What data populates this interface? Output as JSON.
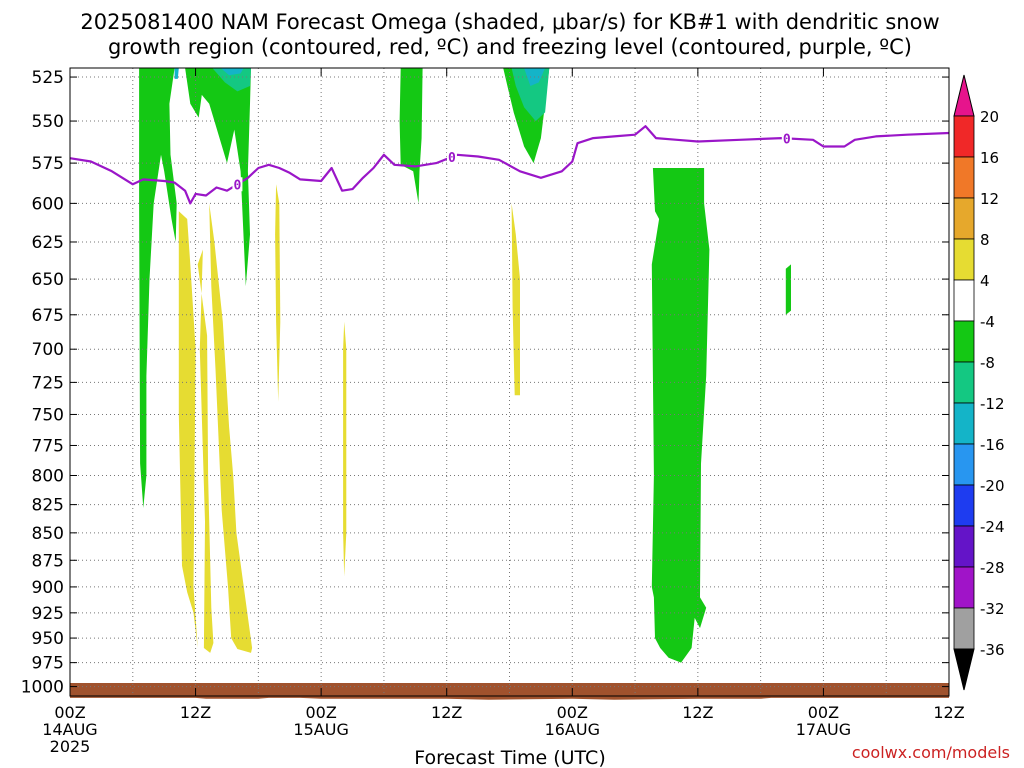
{
  "chart_data": {
    "type": "heatmap",
    "title_line1": "2025081400 NAM Forecast Omega (shaded, μbar/s) for KB#1 with dendritic snow",
    "title_line2": "growth region (contoured, red, ºC) and freezing level (contoured, purple, ºC)",
    "xlabel": "Forecast Time (UTC)",
    "x_range_hours": [
      0,
      84
    ],
    "y_ticks_hpa": [
      525,
      550,
      575,
      600,
      625,
      650,
      675,
      700,
      725,
      750,
      775,
      800,
      825,
      850,
      875,
      900,
      925,
      950,
      975,
      1000
    ],
    "ylim_hpa": [
      520,
      1010
    ],
    "y_scale": "log-pressure (inverted)",
    "grid": "dotted",
    "x_ticks": [
      {
        "h": 0,
        "l1": "00Z",
        "l2": "14AUG",
        "l3": "2025"
      },
      {
        "h": 12,
        "l1": "12Z",
        "l2": "",
        "l3": ""
      },
      {
        "h": 24,
        "l1": "00Z",
        "l2": "15AUG",
        "l3": ""
      },
      {
        "h": 36,
        "l1": "12Z",
        "l2": "",
        "l3": ""
      },
      {
        "h": 48,
        "l1": "00Z",
        "l2": "16AUG",
        "l3": ""
      },
      {
        "h": 60,
        "l1": "12Z",
        "l2": "",
        "l3": ""
      },
      {
        "h": 72,
        "l1": "00Z",
        "l2": "17AUG",
        "l3": ""
      },
      {
        "h": 84,
        "l1": "12Z",
        "l2": "",
        "l3": ""
      }
    ],
    "colorbar": {
      "labels": [
        "20",
        "16",
        "12",
        "8",
        "4",
        "-4",
        "-8",
        "-12",
        "-16",
        "-20",
        "-24",
        "-28",
        "-32",
        "-36"
      ],
      "colors": [
        "#f02828",
        "#f07828",
        "#e6a82c",
        "#e6dc32",
        "#ffffff",
        "#14c814",
        "#14c882",
        "#14b4c8",
        "#2896f0",
        "#1e3cf0",
        "#6414c8",
        "#a014c8",
        "#a0a0a0"
      ],
      "top_arrow_color": "#e6148c",
      "bottom_arrow_color": "#000000"
    },
    "freezing_level_label": "0",
    "freezing_level_color": "#9a16c8",
    "freezing_level": [
      {
        "h": 0,
        "p": 572
      },
      {
        "h": 2,
        "p": 574
      },
      {
        "h": 4,
        "p": 580
      },
      {
        "h": 6,
        "p": 588
      },
      {
        "h": 7,
        "p": 585
      },
      {
        "h": 9,
        "p": 586
      },
      {
        "h": 10,
        "p": 587
      },
      {
        "h": 11,
        "p": 592
      },
      {
        "h": 11.5,
        "p": 600
      },
      {
        "h": 12,
        "p": 594
      },
      {
        "h": 13,
        "p": 595
      },
      {
        "h": 14,
        "p": 590
      },
      {
        "h": 15,
        "p": 592
      },
      {
        "h": 16,
        "p": 588
      },
      {
        "h": 17,
        "p": 584
      },
      {
        "h": 18,
        "p": 578
      },
      {
        "h": 19,
        "p": 576
      },
      {
        "h": 20,
        "p": 578
      },
      {
        "h": 21,
        "p": 581
      },
      {
        "h": 22,
        "p": 585
      },
      {
        "h": 24,
        "p": 586
      },
      {
        "h": 25,
        "p": 578
      },
      {
        "h": 26,
        "p": 592
      },
      {
        "h": 27,
        "p": 591
      },
      {
        "h": 28,
        "p": 584
      },
      {
        "h": 29,
        "p": 578
      },
      {
        "h": 30,
        "p": 570
      },
      {
        "h": 31,
        "p": 576
      },
      {
        "h": 33,
        "p": 577
      },
      {
        "h": 35,
        "p": 575
      },
      {
        "h": 37,
        "p": 570
      },
      {
        "h": 39,
        "p": 571
      },
      {
        "h": 41,
        "p": 573
      },
      {
        "h": 43,
        "p": 580
      },
      {
        "h": 45,
        "p": 584
      },
      {
        "h": 47,
        "p": 580
      },
      {
        "h": 48,
        "p": 574
      },
      {
        "h": 48.5,
        "p": 563
      },
      {
        "h": 50,
        "p": 560
      },
      {
        "h": 52,
        "p": 559
      },
      {
        "h": 54,
        "p": 558
      },
      {
        "h": 55,
        "p": 553
      },
      {
        "h": 56,
        "p": 560
      },
      {
        "h": 58,
        "p": 561
      },
      {
        "h": 60,
        "p": 562
      },
      {
        "h": 64,
        "p": 561
      },
      {
        "h": 68,
        "p": 560
      },
      {
        "h": 71,
        "p": 561
      },
      {
        "h": 72,
        "p": 565
      },
      {
        "h": 74,
        "p": 565
      },
      {
        "h": 75,
        "p": 561
      },
      {
        "h": 77,
        "p": 559
      },
      {
        "h": 80,
        "p": 558
      },
      {
        "h": 84,
        "p": 557
      }
    ],
    "freezing_level_label_hours": [
      16,
      36.5,
      68.5
    ],
    "omega_regions": [
      {
        "color": "#e6dc32",
        "label": "4 to 8",
        "pts": [
          [
            10.4,
            605
          ],
          [
            11.2,
            610
          ],
          [
            11.5,
            640
          ],
          [
            12.0,
            700
          ],
          [
            11.8,
            900
          ],
          [
            12.2,
            960
          ],
          [
            11.8,
            925
          ],
          [
            11.2,
            905
          ],
          [
            10.7,
            880
          ],
          [
            10.4,
            750
          ],
          [
            10.4,
            605
          ]
        ]
      },
      {
        "color": "#e6dc32",
        "label": "4 to 8",
        "pts": [
          [
            12.2,
            640
          ],
          [
            12.7,
            630
          ],
          [
            12.4,
            700
          ],
          [
            12.9,
            840
          ],
          [
            12.8,
            960
          ],
          [
            13.4,
            965
          ],
          [
            13.7,
            955
          ],
          [
            13.5,
            920
          ],
          [
            13.2,
            800
          ],
          [
            13.1,
            690
          ],
          [
            12.2,
            640
          ]
        ]
      },
      {
        "color": "#e6dc32",
        "label": "4 to 8",
        "pts": [
          [
            13.3,
            600
          ],
          [
            13.8,
            625
          ],
          [
            14.6,
            680
          ],
          [
            15.2,
            760
          ],
          [
            15.6,
            800
          ],
          [
            15.9,
            850
          ],
          [
            17.4,
            960
          ],
          [
            17.3,
            965
          ],
          [
            16.0,
            961
          ],
          [
            15.4,
            950
          ],
          [
            15.1,
            900
          ],
          [
            14.5,
            830
          ],
          [
            13.9,
            715
          ],
          [
            13.5,
            655
          ],
          [
            13.3,
            600
          ]
        ]
      },
      {
        "color": "#e6dc32",
        "label": "4 to 8",
        "pts": [
          [
            19.7,
            588
          ],
          [
            20.0,
            600
          ],
          [
            20.1,
            680
          ],
          [
            19.9,
            740
          ],
          [
            19.7,
            680
          ],
          [
            19.6,
            620
          ],
          [
            19.7,
            588
          ]
        ]
      },
      {
        "color": "#e6dc32",
        "label": "4 to 8",
        "pts": [
          [
            26.2,
            680
          ],
          [
            26.4,
            700
          ],
          [
            26.4,
            850
          ],
          [
            26.2,
            890
          ],
          [
            26.1,
            850
          ],
          [
            26.1,
            700
          ],
          [
            26.2,
            680
          ]
        ]
      },
      {
        "color": "#e6dc32",
        "label": "4 to 8",
        "pts": [
          [
            42.2,
            600
          ],
          [
            42.6,
            620
          ],
          [
            43.0,
            650
          ],
          [
            43.0,
            735
          ],
          [
            42.5,
            735
          ],
          [
            42.3,
            670
          ],
          [
            42.2,
            600
          ]
        ]
      },
      {
        "color": "#14c814",
        "label": "-8 to -4",
        "pts": [
          [
            6.6,
            520
          ],
          [
            10.0,
            520
          ],
          [
            9.5,
            540
          ],
          [
            9.6,
            570
          ],
          [
            10.2,
            600
          ],
          [
            10.1,
            625
          ],
          [
            9.7,
            610
          ],
          [
            9.0,
            580
          ],
          [
            8.7,
            570
          ],
          [
            8.0,
            600
          ],
          [
            7.6,
            650
          ],
          [
            7.3,
            720
          ],
          [
            7.3,
            800
          ],
          [
            7.0,
            828
          ],
          [
            6.7,
            790
          ],
          [
            6.6,
            600
          ],
          [
            6.6,
            520
          ]
        ]
      },
      {
        "color": "#14c814",
        "label": "-8 to -4",
        "pts": [
          [
            11.0,
            520
          ],
          [
            17.3,
            520
          ],
          [
            17.2,
            540
          ],
          [
            17.0,
            580
          ],
          [
            17.2,
            620
          ],
          [
            16.8,
            655
          ],
          [
            16.3,
            580
          ],
          [
            15.7,
            555
          ],
          [
            15.0,
            575
          ],
          [
            13.7,
            548
          ],
          [
            13.3,
            540
          ],
          [
            12.6,
            535
          ],
          [
            12.3,
            548
          ],
          [
            11.5,
            540
          ],
          [
            11.0,
            520
          ]
        ]
      },
      {
        "color": "#14c814",
        "label": "-8 to -4",
        "pts": [
          [
            31.6,
            520
          ],
          [
            33.7,
            520
          ],
          [
            33.6,
            560
          ],
          [
            33.4,
            580
          ],
          [
            33.3,
            600
          ],
          [
            32.8,
            580
          ],
          [
            31.6,
            576
          ],
          [
            31.5,
            550
          ],
          [
            31.6,
            520
          ]
        ]
      },
      {
        "color": "#14c814",
        "label": "-8 to -4",
        "pts": [
          [
            41.4,
            520
          ],
          [
            45.8,
            520
          ],
          [
            45.4,
            540
          ],
          [
            45.0,
            560
          ],
          [
            44.3,
            575
          ],
          [
            43.4,
            565
          ],
          [
            42.4,
            545
          ],
          [
            41.8,
            530
          ],
          [
            41.4,
            520
          ]
        ]
      },
      {
        "color": "#14c814",
        "label": "-8 to -4",
        "pts": [
          [
            55.7,
            578
          ],
          [
            60.6,
            578
          ],
          [
            60.6,
            600
          ],
          [
            61.1,
            630
          ],
          [
            60.8,
            720
          ],
          [
            60.3,
            790
          ],
          [
            60.2,
            910
          ],
          [
            60.8,
            920
          ],
          [
            60.2,
            940
          ],
          [
            59.7,
            930
          ],
          [
            59.4,
            960
          ],
          [
            58.4,
            975
          ],
          [
            57.2,
            970
          ],
          [
            56.4,
            960
          ],
          [
            55.9,
            950
          ],
          [
            55.8,
            910
          ],
          [
            55.6,
            900
          ],
          [
            55.8,
            800
          ],
          [
            55.6,
            640
          ],
          [
            56.3,
            610
          ],
          [
            55.9,
            605
          ],
          [
            55.7,
            578
          ]
        ]
      },
      {
        "color": "#14c814",
        "label": "-8 to -4",
        "pts": [
          [
            68.4,
            643
          ],
          [
            68.9,
            640
          ],
          [
            68.9,
            672
          ],
          [
            68.4,
            675
          ],
          [
            68.4,
            643
          ]
        ]
      },
      {
        "color": "#14c882",
        "label": "-12 to -8",
        "pts": [
          [
            13.6,
            520
          ],
          [
            17.3,
            520
          ],
          [
            17.2,
            530
          ],
          [
            16.0,
            533
          ],
          [
            14.8,
            528
          ],
          [
            13.6,
            520
          ]
        ]
      },
      {
        "color": "#14c882",
        "label": "-12 to -8",
        "pts": [
          [
            42.2,
            520
          ],
          [
            45.8,
            520
          ],
          [
            45.4,
            545
          ],
          [
            44.5,
            550
          ],
          [
            43.4,
            542
          ],
          [
            42.6,
            530
          ],
          [
            42.2,
            520
          ]
        ]
      },
      {
        "color": "#14b4c8",
        "label": "-16 to -12",
        "pts": [
          [
            14.4,
            520
          ],
          [
            16.6,
            520
          ],
          [
            16.3,
            523
          ],
          [
            15.2,
            524
          ],
          [
            14.4,
            520
          ]
        ]
      },
      {
        "color": "#14b4c8",
        "label": "-16 to -12",
        "pts": [
          [
            43.4,
            520
          ],
          [
            45.4,
            520
          ],
          [
            44.8,
            528
          ],
          [
            44.0,
            530
          ],
          [
            43.4,
            520
          ]
        ]
      },
      {
        "color": "#14b4c8",
        "label": "-16 to -12",
        "pts": [
          [
            10.0,
            520
          ],
          [
            10.4,
            520
          ],
          [
            10.3,
            526
          ],
          [
            10.0,
            526
          ],
          [
            10.0,
            520
          ]
        ]
      }
    ],
    "surface_terrain_color": "#a0522d",
    "surface_terrain": [
      {
        "h": 0,
        "p": 1012
      },
      {
        "h": 12,
        "p": 1012
      },
      {
        "h": 13,
        "p": 1013
      },
      {
        "h": 18,
        "p": 1013
      },
      {
        "h": 19,
        "p": 1012
      },
      {
        "h": 22,
        "p": 1012
      },
      {
        "h": 24,
        "p": 1013
      },
      {
        "h": 36,
        "p": 1013
      },
      {
        "h": 40,
        "p": 1014
      },
      {
        "h": 48,
        "p": 1013
      },
      {
        "h": 52,
        "p": 1014
      },
      {
        "h": 60,
        "p": 1013
      },
      {
        "h": 66,
        "p": 1013
      },
      {
        "h": 67,
        "p": 1012
      },
      {
        "h": 84,
        "p": 1012
      }
    ],
    "credit": "coolwx.com/models"
  }
}
